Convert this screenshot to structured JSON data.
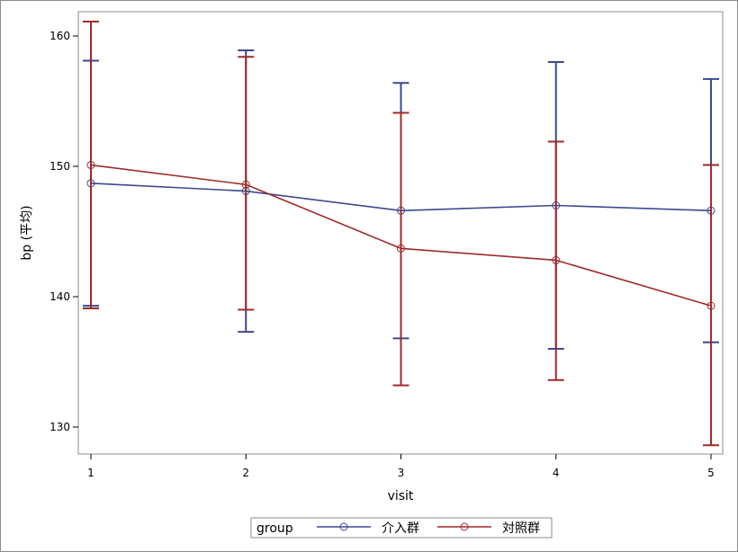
{
  "chart_data": {
    "type": "line",
    "title": "",
    "xlabel": "visit",
    "ylabel": "bp (平均)",
    "categories": [
      "1",
      "2",
      "3",
      "4",
      "5"
    ],
    "x": [
      1,
      2,
      3,
      4,
      5
    ],
    "xlim": [
      1,
      5
    ],
    "ylim": [
      128,
      162
    ],
    "yticks": [
      130,
      140,
      150,
      160
    ],
    "grid": false,
    "error_bars": true,
    "legend": {
      "title": "group",
      "position": "bottom-center"
    },
    "series": [
      {
        "name": "介入群",
        "color": "#3b4a8f",
        "marker": "circle",
        "values": [
          148.7,
          148.1,
          146.6,
          147.0,
          146.6
        ],
        "lower": [
          139.3,
          137.3,
          136.8,
          136.0,
          136.5
        ],
        "upper": [
          158.1,
          158.9,
          156.4,
          158.0,
          156.7
        ]
      },
      {
        "name": "対照群",
        "color": "#9e2b2b",
        "marker": "circle",
        "values": [
          150.1,
          148.6,
          143.7,
          142.8,
          139.3
        ],
        "lower": [
          139.1,
          139.0,
          133.2,
          133.6,
          128.6
        ],
        "upper": [
          161.1,
          158.4,
          154.1,
          151.9,
          150.1
        ]
      }
    ]
  }
}
